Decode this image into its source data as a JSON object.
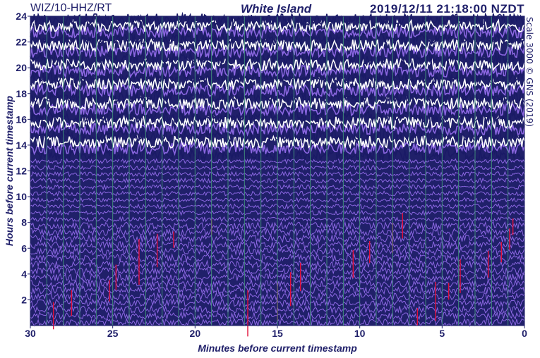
{
  "header": {
    "station": "WIZ/10-HHZ/RT",
    "title": "White Island",
    "timestamp": "2019/12/11 21:18:00 NZDT"
  },
  "credit": "Scale 3000 © GNS (2019)",
  "colors": {
    "background": "#20206a",
    "trace_dark": "#1a1a66",
    "trace_light": "#8a66e0",
    "trace_white": "#ffffff",
    "event": "#e0103a",
    "grid": "#3f8a7a",
    "frame": "#20206a"
  },
  "chart_data": {
    "type": "heatmap",
    "xlabel": "Minutes before current timestamp",
    "ylabel": "Hours before current timestamp",
    "xlim": [
      30,
      0
    ],
    "ylim": [
      0,
      24
    ],
    "x_ticks": [
      30,
      25,
      20,
      15,
      10,
      5,
      0
    ],
    "y_ticks": [
      2,
      4,
      6,
      8,
      10,
      12,
      14,
      16,
      18,
      20,
      22,
      24
    ],
    "x_tick_labels": [
      "30",
      "25",
      "20",
      "15",
      "10",
      "5",
      "0"
    ],
    "y_tick_labels": [
      "2",
      "4",
      "6",
      "8",
      "10",
      "12",
      "14",
      "16",
      "18",
      "20",
      "22",
      "24"
    ],
    "grid": true,
    "vertical_gridlines_minutes": [
      29,
      28,
      27,
      26,
      25,
      24,
      23,
      22,
      21,
      20,
      19,
      18,
      17,
      16,
      15,
      14,
      13,
      12,
      11,
      10,
      9,
      8,
      7,
      6,
      5,
      4,
      3,
      2,
      1
    ],
    "trace_rows": 48,
    "row_interval_minutes": 30,
    "rows_with_red_events_hours": [
      0.5,
      1.5,
      2.5,
      3.5,
      4.5,
      5.5,
      6.5,
      7.5
    ],
    "red_event_minutes": [
      28.6,
      27.5,
      25.2,
      24.8,
      23.4,
      22.3,
      21.3,
      19.0,
      16.8,
      15.0,
      14.2,
      13.6,
      10.4,
      9.4,
      8.0,
      7.4,
      6.5,
      5.4,
      4.6,
      3.9,
      2.2,
      1.4,
      0.9,
      0.7
    ]
  }
}
